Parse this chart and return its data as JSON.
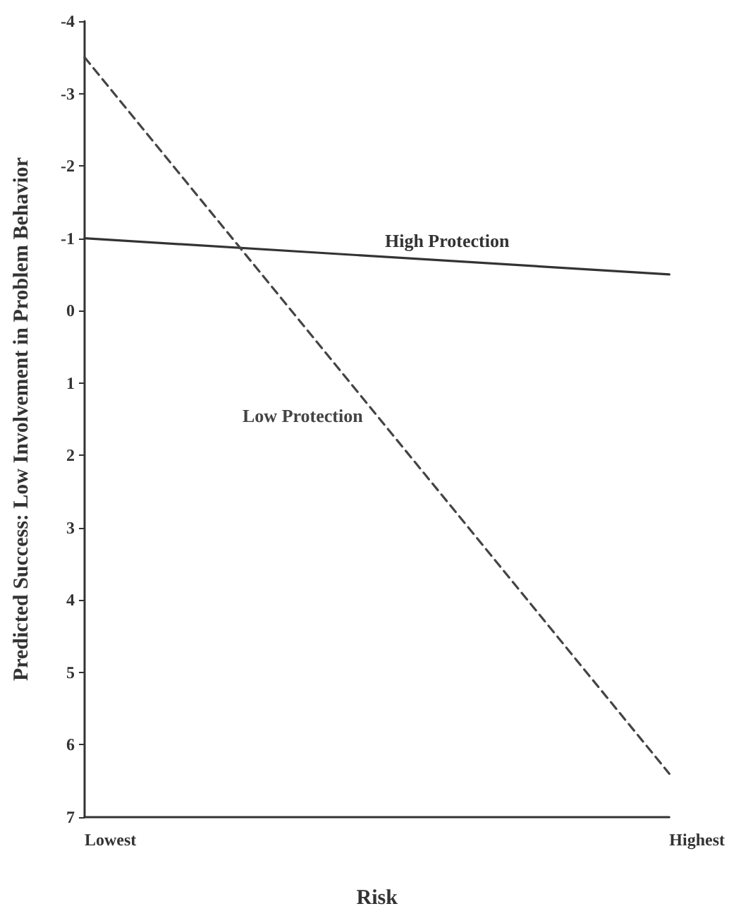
{
  "chart_data": {
    "type": "line",
    "xlabel": "Risk",
    "ylabel": "Predicted Success: Low Involvement in Problem Behavior",
    "categories": [
      "Lowest",
      "Highest"
    ],
    "series": [
      {
        "name": "High Protection",
        "color": "#333333",
        "values": [
          -1,
          -0.5
        ],
        "line_style": "solid"
      },
      {
        "name": "Low Protection",
        "color": "#444444",
        "values": [
          -3.5,
          6.4
        ],
        "line_style": "dashed"
      }
    ],
    "ylim": [
      7,
      -4
    ],
    "yticks": [
      -4,
      -3,
      -2,
      -1,
      0,
      1,
      2,
      3,
      4,
      5,
      6,
      7
    ],
    "grid": false,
    "legend": false,
    "marker": "none"
  }
}
